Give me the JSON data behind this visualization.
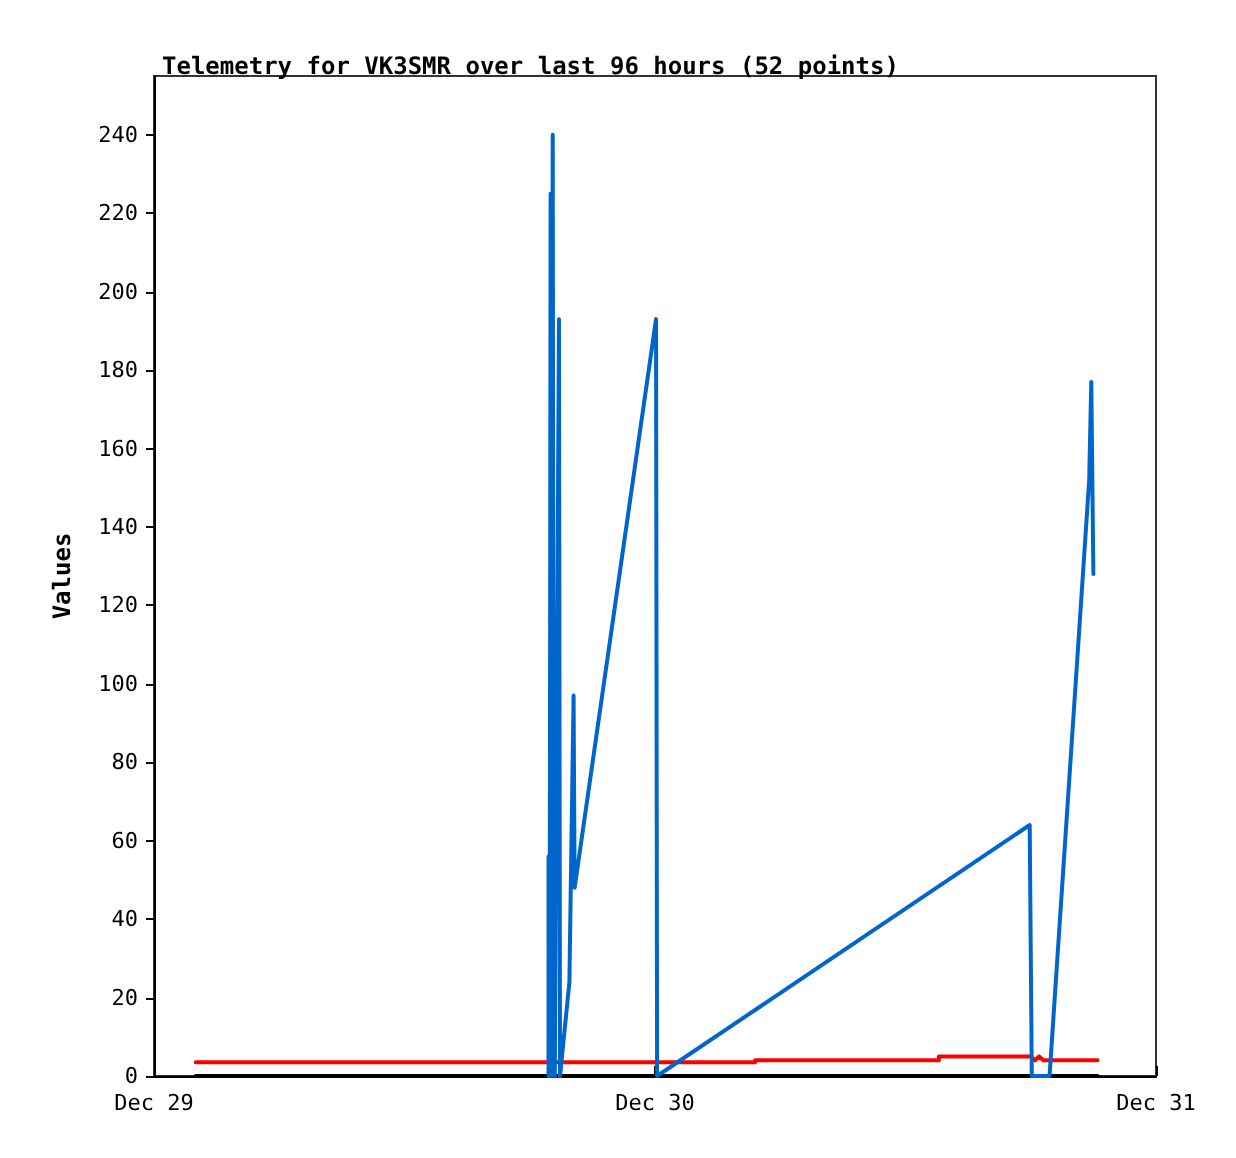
{
  "chart_data": {
    "type": "line",
    "title": "Telemetry for VK3SMR over last 96 hours (52 points)",
    "ylabel": "Values",
    "xlim": [
      "--12-29",
      "--12-31"
    ],
    "xticks": [
      {
        "value": "--12-29",
        "label": "Dec 29"
      },
      {
        "value": "--12-30",
        "label": "Dec 30"
      },
      {
        "value": "--12-31",
        "label": "Dec 31"
      }
    ],
    "ylim": [
      0,
      255
    ],
    "yticks": [
      0,
      20,
      40,
      60,
      80,
      100,
      120,
      140,
      160,
      180,
      200,
      220,
      240
    ],
    "grid": false,
    "marker": "none",
    "line_style": "solid",
    "series": [
      {
        "color": "#ff0000",
        "x": [
          "--12-29T02:00",
          "--12-30T04:48",
          "--12-30T04:48",
          "--12-30T13:36",
          "--12-30T13:36",
          "--12-30T18:00",
          "--12-30T18:12",
          "--12-30T18:24",
          "--12-30T18:36",
          "--12-30T21:12"
        ],
        "values": [
          3.5,
          3.5,
          4,
          4,
          5,
          5,
          4,
          5,
          4,
          4
        ]
      },
      {
        "color": "#000000",
        "x": [
          "--12-29T02:00",
          "--12-30T21:12"
        ],
        "values": [
          0,
          0
        ]
      },
      {
        "color": "#0066cc",
        "x": [
          "--12-29T18:54",
          "--12-29T18:54",
          "--12-29T18:57",
          "--12-29T19:00",
          "--12-29T19:03",
          "--12-29T19:06",
          "--12-29T19:09",
          "--12-29T19:12",
          "--12-29T19:24",
          "--12-29T19:27",
          "--12-29T19:54",
          "--12-29T20:06",
          "--12-29T20:09",
          "--12-30T00:03",
          "--12-30T00:06",
          "--12-30T17:57",
          "--12-30T18:00",
          "--12-30T18:03",
          "--12-30T18:54",
          "--12-30T20:48",
          "--12-30T20:54",
          "--12-30T21:00"
        ],
        "values": [
          0,
          56,
          0,
          225,
          0,
          240,
          24,
          0,
          193,
          0,
          24,
          97,
          48,
          193,
          0,
          64,
          32,
          0,
          0,
          152,
          177,
          128
        ]
      }
    ]
  }
}
